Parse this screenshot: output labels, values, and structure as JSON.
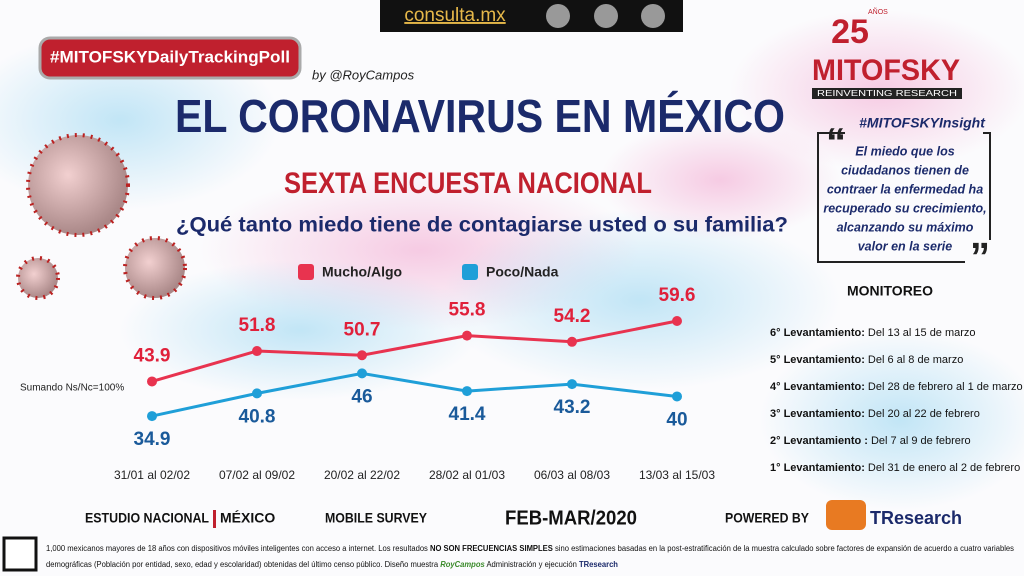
{
  "site": "consulta.mx",
  "hashtag": "#MITOFSKYDailyTrackingPoll",
  "byline": "by @RoyCampos",
  "logo": {
    "years": "25",
    "years_label": "AÑOS",
    "name": "MITOFSKY",
    "tagline": "REINVENTING RESEARCH"
  },
  "chart_data": {
    "type": "line",
    "title": "EL CORONAVIRUS EN MÉXICO",
    "subtitle": "SEXTA ENCUESTA NACIONAL",
    "question": "¿Qué tanto miedo tiene de contagiarse usted o su familia?",
    "note": "Sumando Ns/Nc=100%",
    "categories": [
      "31/01 al 02/02",
      "07/02 al 09/02",
      "20/02 al 22/02",
      "28/02 al 01/03",
      "06/03 al 08/03",
      "13/03 al 15/03"
    ],
    "series": [
      {
        "name": "Mucho/Algo",
        "color": "#e8334f",
        "label_color": "#e0203a",
        "values": [
          43.9,
          51.8,
          50.7,
          55.8,
          54.2,
          59.6
        ]
      },
      {
        "name": "Poco/Nada",
        "color": "#1f9fd8",
        "label_color": "#1a5a9a",
        "values": [
          34.9,
          40.8,
          46.0,
          41.4,
          43.2,
          40.0
        ]
      }
    ]
  },
  "insight": {
    "hashtag": "#MITOFSKYInsight",
    "lines": [
      "El miedo que los",
      "ciudadanos tienen de",
      "contraer la enfermedad ha",
      "recuperado su crecimiento,",
      "alcanzando su máximo",
      "valor en la serie"
    ]
  },
  "monitoreo": {
    "title": "MONITOREO",
    "rows": [
      {
        "label": "6° Levantamiento:",
        "text": " Del 13 al 15 de marzo"
      },
      {
        "label": "5° Levantamiento:",
        "text": " Del 6 al 8 de marzo"
      },
      {
        "label": "4° Levantamiento:",
        "text": " Del 28 de febrero al 1 de marzo"
      },
      {
        "label": "3° Levantamiento:",
        "text": " Del 20 al 22 de febrero"
      },
      {
        "label": "2° Levantamiento :",
        "text": " Del 7 al 9 de febrero"
      },
      {
        "label": "1° Levantamiento:",
        "text": " Del 31 de enero al 2 de febrero"
      }
    ]
  },
  "footer": {
    "study": "ESTUDIO NACIONAL",
    "country": "MÉXICO",
    "survey": "MOBILE SURVEY",
    "period": "FEB-MAR/2020",
    "powered": "POWERED BY",
    "brand": "TResearch",
    "note_line1": [
      "1,000 mexicanos mayores de 18 años con dispositivos móviles inteligentes con acceso a internet. Los resultados ",
      "NO SON FRECUENCIAS SIMPLES",
      " sino estimaciones basadas en la post-estratificación de la muestra calculado sobre factores de expansión de acuerdo a cuatro variables"
    ],
    "note_line2": [
      "demográficas (Población por entidad, sexo, edad y escolaridad) obtenidas del último censo público. Diseño muestra ",
      "RoyCampos",
      " Administración y ejecución ",
      "TResearch"
    ]
  }
}
